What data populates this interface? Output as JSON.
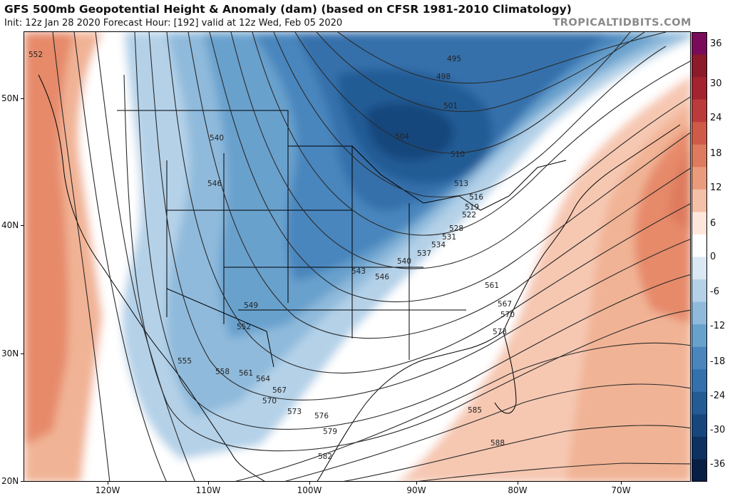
{
  "header": {
    "title": "GFS 500mb Geopotential Height & Anomaly (dam) (based on CFSR 1981-2010 Climatology)",
    "subtitle": "Init: 12z Jan 28 2020   Forecast Hour: [192]   valid at 12z Wed, Feb 05 2020",
    "brand": "TROPICALTIDBITS.COM"
  },
  "axes": {
    "lat_labels": [
      "50N",
      "40N",
      "30N",
      "20N"
    ],
    "lon_labels": [
      "120W",
      "110W",
      "100W",
      "90W",
      "80W",
      "70W"
    ]
  },
  "colorbar": {
    "ticks": [
      "36",
      "30",
      "24",
      "18",
      "12",
      "6",
      "0",
      "-6",
      "-12",
      "-18",
      "-24",
      "-30",
      "-36"
    ],
    "colors": [
      "#7a0a5a",
      "#8b1a2a",
      "#a3242f",
      "#bb3b3b",
      "#cf5a48",
      "#de7a5d",
      "#ea9b7c",
      "#f4c0a8",
      "#fde7dc",
      "#ffffff",
      "#d9e8f3",
      "#b4d1e8",
      "#8fbadb",
      "#69a1cd",
      "#4a86bd",
      "#3470ab",
      "#245b95",
      "#17467c",
      "#0d3262",
      "#081f45"
    ]
  },
  "contour_labels": [
    "552",
    "495",
    "498",
    "501",
    "504",
    "507",
    "510",
    "513",
    "516",
    "519",
    "522",
    "528",
    "531",
    "534",
    "537",
    "540",
    "543",
    "546",
    "549",
    "552",
    "555",
    "558",
    "561",
    "564",
    "567",
    "570",
    "573",
    "576",
    "579",
    "582",
    "585",
    "588",
    "540",
    "546",
    "561",
    "567",
    "570",
    "573"
  ]
}
